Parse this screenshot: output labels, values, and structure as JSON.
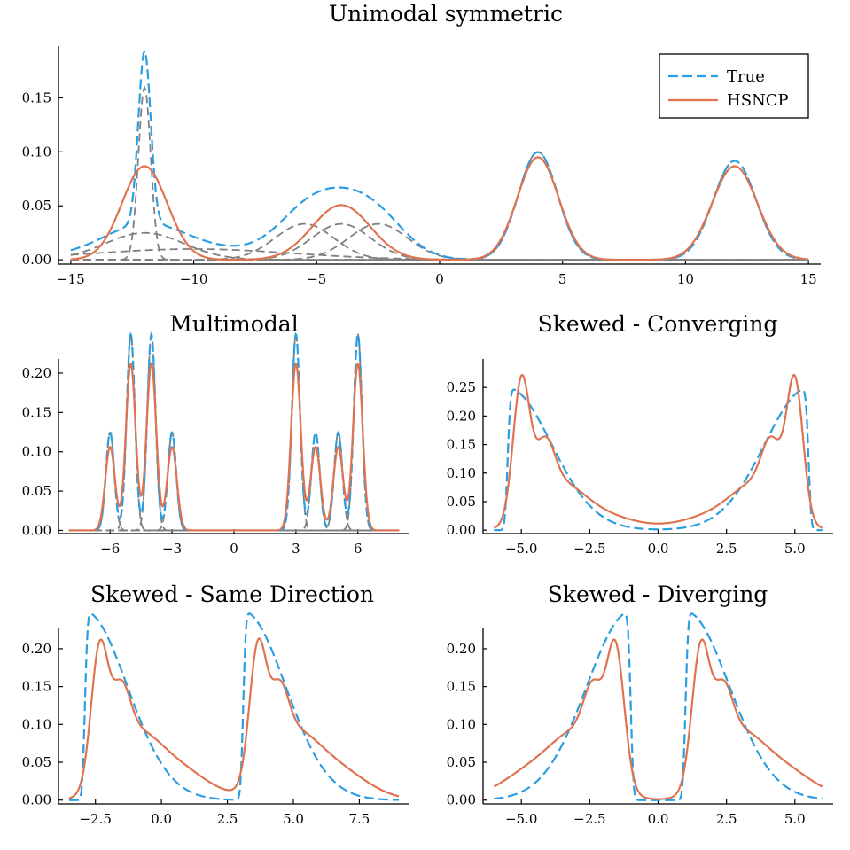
{
  "colors": {
    "true": "#2a9ee0",
    "fit": "#e0734f",
    "component": "#808080"
  },
  "legend": {
    "true_label": "True",
    "fit_label": "HSNCP",
    "placement": "top-right"
  },
  "chart_data": [
    {
      "id": "unimodal",
      "type": "line",
      "title": "Unimodal symmetric",
      "xlim": [
        -15.5,
        15.5
      ],
      "ylim": [
        -0.004,
        0.198
      ],
      "xticks": [
        -15,
        -10,
        -5,
        0,
        5,
        10,
        15
      ],
      "xtick_labels": [
        "−15",
        "−10",
        "−5",
        "0",
        "5",
        "10",
        "15"
      ],
      "yticks": [
        0,
        0.05,
        0.1,
        0.15
      ],
      "ytick_labels": [
        "0.00",
        "0.05",
        "0.10",
        "0.15"
      ],
      "x_range": [
        -15,
        15
      ],
      "true_components": [
        {
          "w": 0.1,
          "m": -12,
          "s": 0.25
        },
        {
          "w": 0.1,
          "m": -12,
          "s": 1.6
        },
        {
          "w": 0.1,
          "m": -10,
          "s": 4.0
        },
        {
          "w": 0.1,
          "m": -5.5,
          "s": 1.2
        },
        {
          "w": 0.1,
          "m": -4,
          "s": 1.2
        },
        {
          "w": 0.1,
          "m": -2.5,
          "s": 1.2
        },
        {
          "w": 0.2,
          "m": 4,
          "s": 0.8
        },
        {
          "w": 0.2,
          "m": 12,
          "s": 0.87
        }
      ],
      "fit_components": [
        {
          "w": 0.2,
          "m": -12,
          "s": 0.92
        },
        {
          "w": 0.15,
          "m": -4,
          "s": 1.18
        },
        {
          "w": 0.2,
          "m": 4,
          "s": 0.84
        },
        {
          "w": 0.2,
          "m": 12,
          "s": 0.92
        }
      ],
      "shown_components": [
        0,
        1,
        2,
        3,
        4,
        5,
        6,
        7
      ],
      "legend": true
    },
    {
      "id": "multimodal",
      "type": "line",
      "title": "Multimodal",
      "xlim": [
        -8.5,
        8.5
      ],
      "ylim": [
        -0.004,
        0.218
      ],
      "xticks": [
        -6,
        -3,
        0,
        3,
        6
      ],
      "xtick_labels": [
        "−6",
        "−3",
        "0",
        "3",
        "6"
      ],
      "yticks": [
        0,
        0.05,
        0.1,
        0.15,
        0.2
      ],
      "ytick_labels": [
        "0.00",
        "0.05",
        "0.10",
        "0.15",
        "0.20"
      ],
      "x_range": [
        -8,
        8
      ],
      "true_components": [
        {
          "w": 0.0625,
          "m": -6,
          "s": 0.2
        },
        {
          "w": 0.125,
          "m": -5,
          "s": 0.2
        },
        {
          "w": 0.125,
          "m": -4,
          "s": 0.2
        },
        {
          "w": 0.0625,
          "m": -3,
          "s": 0.2
        },
        {
          "w": 0.125,
          "m": 3,
          "s": 0.2
        },
        {
          "w": 0.0625,
          "m": 3.95,
          "s": 0.2
        },
        {
          "w": 0.0625,
          "m": 5.05,
          "s": 0.2
        },
        {
          "w": 0.125,
          "m": 6,
          "s": 0.2
        }
      ],
      "fit_components": [
        {
          "w": 0.0625,
          "m": -6,
          "s": 0.235
        },
        {
          "w": 0.125,
          "m": -5,
          "s": 0.235
        },
        {
          "w": 0.125,
          "m": -4,
          "s": 0.235
        },
        {
          "w": 0.0625,
          "m": -3,
          "s": 0.235
        },
        {
          "w": 0.125,
          "m": 3,
          "s": 0.235
        },
        {
          "w": 0.0625,
          "m": 3.95,
          "s": 0.235
        },
        {
          "w": 0.0625,
          "m": 5.05,
          "s": 0.235
        },
        {
          "w": 0.125,
          "m": 6,
          "s": 0.235
        }
      ],
      "shown_components": [
        0,
        1,
        2,
        3,
        4,
        5,
        6,
        7
      ],
      "legend": false
    },
    {
      "id": "skewed-converging",
      "type": "line",
      "title": "Skewed - Converging",
      "xlim": [
        -6.4,
        6.4
      ],
      "ylim": [
        -0.006,
        0.3
      ],
      "xticks": [
        -5,
        -2.5,
        0,
        2.5,
        5
      ],
      "xtick_labels": [
        "−5.0",
        "−2.5",
        "0.0",
        "2.5",
        "5.0"
      ],
      "yticks": [
        0,
        0.05,
        0.1,
        0.15,
        0.2,
        0.25
      ],
      "ytick_labels": [
        "0.00",
        "0.05",
        "0.10",
        "0.15",
        "0.20",
        "0.25"
      ],
      "x_range": [
        -6,
        6
      ],
      "true_skew": [
        {
          "w": 0.5,
          "loc": -5.5,
          "scale": 1.6,
          "alpha": 20
        },
        {
          "w": 0.5,
          "loc": 5.5,
          "scale": 1.6,
          "alpha": -20
        }
      ],
      "fit_components": [
        {
          "w": 0.18,
          "m": -5.0,
          "s": 0.3
        },
        {
          "w": 0.08,
          "m": -4.15,
          "s": 0.35
        },
        {
          "w": 0.15,
          "m": -3.7,
          "s": 0.9
        },
        {
          "w": 0.09,
          "m": -2.3,
          "s": 1.3
        },
        {
          "w": 0.18,
          "m": 5.0,
          "s": 0.3
        },
        {
          "w": 0.08,
          "m": 4.15,
          "s": 0.35
        },
        {
          "w": 0.15,
          "m": 3.7,
          "s": 0.9
        },
        {
          "w": 0.09,
          "m": 2.3,
          "s": 1.3
        }
      ],
      "legend": false
    },
    {
      "id": "skewed-same",
      "type": "line",
      "title": "Skewed - Same Direction",
      "xlim": [
        -3.9,
        9.4
      ],
      "ylim": [
        -0.005,
        0.228
      ],
      "xticks": [
        -2.5,
        0,
        2.5,
        5,
        7.5
      ],
      "xtick_labels": [
        "−2.5",
        "0.0",
        "2.5",
        "5.0",
        "7.5"
      ],
      "yticks": [
        0,
        0.05,
        0.1,
        0.15,
        0.2
      ],
      "ytick_labels": [
        "0.00",
        "0.05",
        "0.10",
        "0.15",
        "0.20"
      ],
      "x_range": [
        -3.5,
        9
      ],
      "true_skew": [
        {
          "w": 0.5,
          "loc": -2.9,
          "scale": 1.6,
          "alpha": 20
        },
        {
          "w": 0.5,
          "loc": 3.1,
          "scale": 1.6,
          "alpha": 20
        }
      ],
      "fit_components": [
        {
          "w": 0.14,
          "m": -2.35,
          "s": 0.32
        },
        {
          "w": 0.07,
          "m": -1.55,
          "s": 0.35
        },
        {
          "w": 0.15,
          "m": -1.1,
          "s": 0.9
        },
        {
          "w": 0.14,
          "m": 0.4,
          "s": 1.25
        },
        {
          "w": 0.14,
          "m": 3.65,
          "s": 0.32
        },
        {
          "w": 0.07,
          "m": 4.45,
          "s": 0.35
        },
        {
          "w": 0.15,
          "m": 4.9,
          "s": 0.9
        },
        {
          "w": 0.14,
          "m": 6.4,
          "s": 1.25
        }
      ],
      "legend": false
    },
    {
      "id": "skewed-diverging",
      "type": "line",
      "title": "Skewed - Diverging",
      "xlim": [
        -6.4,
        6.4
      ],
      "ylim": [
        -0.005,
        0.228
      ],
      "xticks": [
        -5,
        -2.5,
        0,
        2.5,
        5
      ],
      "xtick_labels": [
        "−5.0",
        "−2.5",
        "0.0",
        "2.5",
        "5.0"
      ],
      "yticks": [
        0,
        0.05,
        0.1,
        0.15,
        0.2
      ],
      "ytick_labels": [
        "0.00",
        "0.05",
        "0.10",
        "0.15",
        "0.20"
      ],
      "x_range": [
        -6,
        6
      ],
      "true_skew": [
        {
          "w": 0.5,
          "loc": -1.0,
          "scale": 1.6,
          "alpha": -20
        },
        {
          "w": 0.5,
          "loc": 1.0,
          "scale": 1.6,
          "alpha": 20
        }
      ],
      "fit_components": [
        {
          "w": 0.14,
          "m": -1.55,
          "s": 0.32
        },
        {
          "w": 0.07,
          "m": -2.35,
          "s": 0.35
        },
        {
          "w": 0.15,
          "m": -2.8,
          "s": 0.9
        },
        {
          "w": 0.14,
          "m": -4.3,
          "s": 1.25
        },
        {
          "w": 0.14,
          "m": 1.55,
          "s": 0.32
        },
        {
          "w": 0.07,
          "m": 2.35,
          "s": 0.35
        },
        {
          "w": 0.15,
          "m": 2.8,
          "s": 0.9
        },
        {
          "w": 0.14,
          "m": 4.3,
          "s": 1.25
        }
      ],
      "legend": false
    }
  ]
}
